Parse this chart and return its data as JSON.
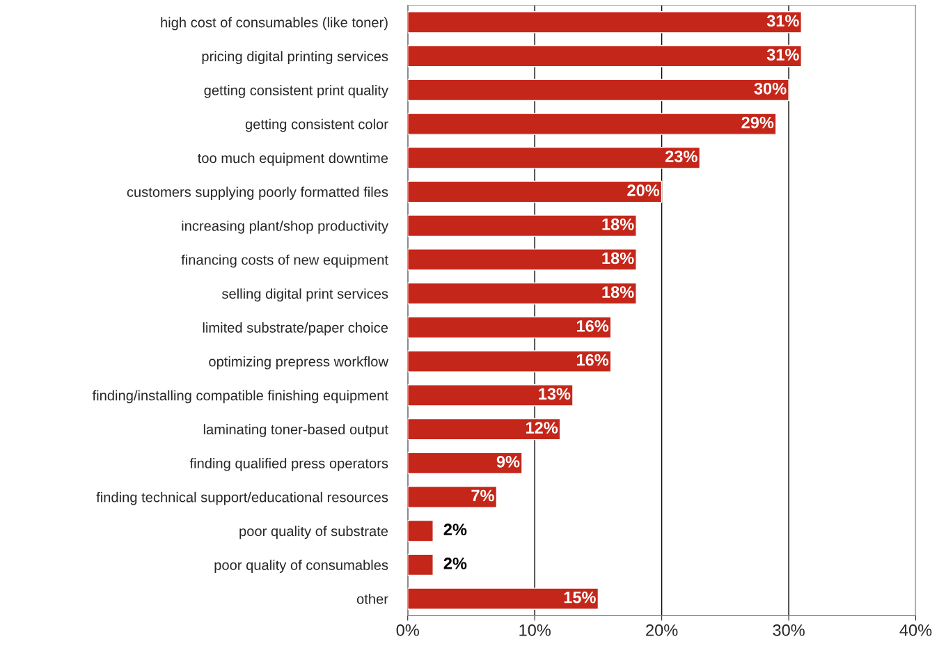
{
  "chart_data": {
    "type": "bar",
    "orientation": "horizontal",
    "categories": [
      "high cost of consumables (like toner)",
      "pricing digital printing services",
      "getting consistent print quality",
      "getting consistent color",
      "too much equipment downtime",
      "customers supplying poorly formatted files",
      "increasing plant/shop productivity",
      "financing costs of new equipment",
      "selling digital print services",
      "limited substrate/paper choice",
      "optimizing prepress workflow",
      "finding/installing compatible finishing equipment",
      "laminating toner-based output",
      "finding qualified press operators",
      "finding technical support/educational resources",
      "poor quality of substrate",
      "poor quality of consumables",
      "other"
    ],
    "values": [
      31,
      31,
      30,
      29,
      23,
      20,
      18,
      18,
      18,
      16,
      16,
      13,
      12,
      9,
      7,
      2,
      2,
      15
    ],
    "value_labels": [
      "31%",
      "31%",
      "30%",
      "29%",
      "23%",
      "20%",
      "18%",
      "18%",
      "18%",
      "16%",
      "16%",
      "13%",
      "12%",
      "9%",
      "7%",
      "2%",
      "2%",
      "15%"
    ],
    "color": "#c4271a",
    "xlim": [
      0,
      40
    ],
    "xticks": [
      {
        "value": 0,
        "label": "0%"
      },
      {
        "value": 10,
        "label": "10%"
      },
      {
        "value": 20,
        "label": "20%"
      },
      {
        "value": 30,
        "label": "30%"
      },
      {
        "value": 40,
        "label": "40%"
      }
    ],
    "grid": "x",
    "legend": false
  }
}
